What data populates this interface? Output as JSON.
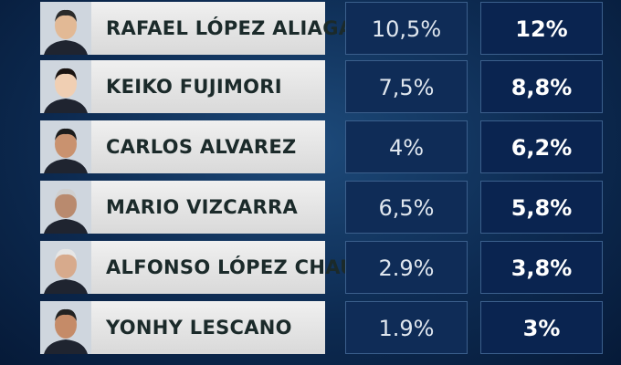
{
  "table": {
    "rows": [
      [
        "RAFAEL LÓPEZ ALIAGA",
        "10,5%",
        "12%"
      ],
      [
        "KEIKO FUJIMORI",
        "7,5%",
        "8,8%"
      ],
      [
        "CARLOS ALVAREZ",
        "4%",
        "6,2%"
      ],
      [
        "MARIO VIZCARRA",
        "6,5%",
        "5,8%"
      ],
      [
        "ALFONSO LÓPEZ CHAU",
        "2.9%",
        "3,8%"
      ],
      [
        "YONHY LESCANO",
        "1.9%",
        "3%"
      ]
    ]
  }
}
